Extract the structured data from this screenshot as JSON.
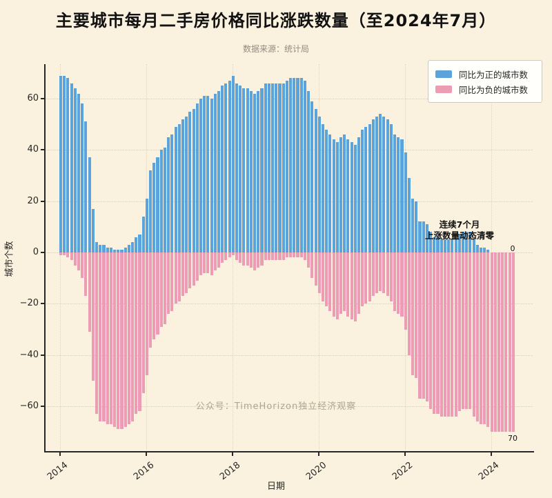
{
  "title": "主要城市每月二手房价格同比涨跌数量（至2024年7月）",
  "subtitle": "数据来源：统计局",
  "watermark": "公众号：TimeHorizon独立经济观察",
  "annotation": {
    "line1": "连续7个月",
    "line2": "上涨数量动态清零",
    "zero_label": "0",
    "seventy_label": "70"
  },
  "legend": {
    "items": [
      {
        "label": "同比为正的城市数",
        "color": "#5BA4DB"
      },
      {
        "label": "同比为负的城市数",
        "color": "#EC9DB5"
      }
    ]
  },
  "colors": {
    "background": "#FAF1DE",
    "positive_bar": "#5BA4DB",
    "negative_bar": "#EC9DB5",
    "axis": "#262626"
  },
  "chart_data": {
    "type": "bar",
    "title": "主要城市每月二手房价格同比涨跌数量（至2024年7月）",
    "xlabel": "日期",
    "ylabel": "城市个数",
    "x_start": "2014-01",
    "x_end": "2024-07",
    "months_per_bar": 1,
    "ylim": [
      -75,
      74
    ],
    "grid": "dotted",
    "legend_position": "upper right",
    "y_ticks": [
      60,
      40,
      20,
      0,
      -20,
      -40,
      -60
    ],
    "y_tick_labels": [
      "60",
      "40",
      "20",
      "0",
      "−20",
      "−40",
      "−60"
    ],
    "x_tick_years": [
      2014,
      2016,
      2018,
      2020,
      2022,
      2024
    ],
    "x_tick_labels": [
      "2014",
      "2016",
      "2018",
      "2020",
      "2022",
      "2024"
    ],
    "series": [
      {
        "name": "同比为正的城市数",
        "color": "#5BA4DB",
        "values": [
          69,
          69,
          68,
          66,
          64,
          62,
          58,
          51,
          37,
          17,
          4,
          3,
          3,
          2,
          2,
          1,
          1,
          1,
          2,
          3,
          4,
          6,
          7,
          14,
          21,
          32,
          35,
          37,
          40,
          41,
          45,
          46,
          49,
          50,
          52,
          53,
          55,
          56,
          58,
          60,
          61,
          61,
          60,
          62,
          63,
          65,
          66,
          67,
          69,
          66,
          65,
          64,
          64,
          63,
          62,
          63,
          64,
          66,
          66,
          66,
          66,
          66,
          66,
          67,
          68,
          68,
          68,
          68,
          67,
          63,
          59,
          56,
          53,
          50,
          48,
          46,
          44,
          43,
          45,
          46,
          44,
          43,
          42,
          45,
          48,
          49,
          50,
          52,
          53,
          54,
          53,
          52,
          50,
          46,
          45,
          44,
          39,
          29,
          21,
          20,
          12,
          12,
          11,
          8,
          6,
          6,
          5,
          5,
          5,
          5,
          5,
          7,
          8,
          8,
          8,
          5,
          3,
          2,
          2,
          1,
          0,
          0,
          0,
          0,
          0,
          0,
          0
        ]
      },
      {
        "name": "同比为负的城市数",
        "color": "#EC9DB5",
        "values": [
          -1,
          -1,
          -2,
          -3,
          -5,
          -7,
          -10,
          -17,
          -31,
          -50,
          -63,
          -66,
          -66,
          -67,
          -67,
          -68,
          -69,
          -69,
          -68,
          -67,
          -66,
          -63,
          -62,
          -55,
          -48,
          -37,
          -34,
          -32,
          -29,
          -28,
          -24,
          -23,
          -20,
          -19,
          -17,
          -16,
          -14,
          -13,
          -11,
          -9,
          -8,
          -8,
          -9,
          -7,
          -6,
          -4,
          -3,
          -2,
          -1,
          -3,
          -4,
          -5,
          -5,
          -6,
          -7,
          -6,
          -5,
          -3,
          -3,
          -3,
          -3,
          -3,
          -3,
          -2,
          -2,
          -2,
          -2,
          -2,
          -3,
          -6,
          -10,
          -13,
          -16,
          -19,
          -21,
          -23,
          -25,
          -26,
          -24,
          -23,
          -25,
          -26,
          -27,
          -24,
          -21,
          -20,
          -19,
          -17,
          -16,
          -15,
          -16,
          -17,
          -19,
          -23,
          -24,
          -25,
          -30,
          -40,
          -48,
          -49,
          -57,
          -57,
          -58,
          -61,
          -63,
          -63,
          -64,
          -64,
          -64,
          -64,
          -64,
          -62,
          -61,
          -61,
          -61,
          -64,
          -66,
          -67,
          -67,
          -68,
          -70,
          -70,
          -70,
          -70,
          -70,
          -70,
          -70
        ]
      }
    ]
  }
}
